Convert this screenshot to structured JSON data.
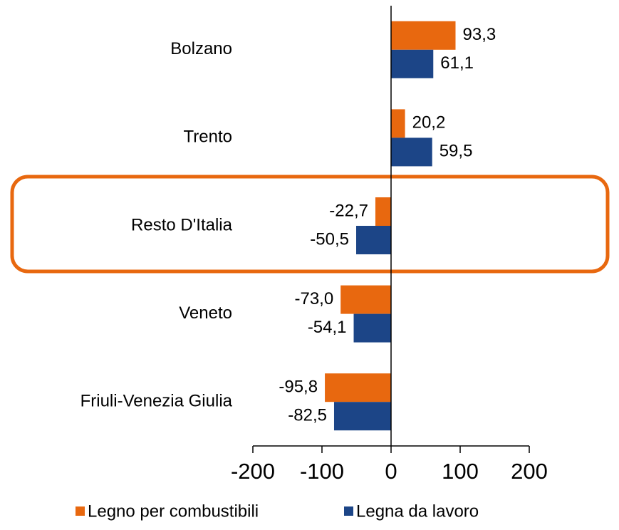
{
  "chart_data": {
    "type": "hbar",
    "categories": [
      "Bolzano",
      "Trento",
      "Resto D'Italia",
      "Veneto",
      "Friuli-Venezia Giulia"
    ],
    "series": [
      {
        "name": "Legno per combustibili",
        "color": "#e8680f",
        "values": [
          93.3,
          20.2,
          -22.7,
          -73.0,
          -95.8
        ],
        "value_labels": [
          "93,3",
          "20,2",
          "-22,7",
          "-73,0",
          "-95,8"
        ]
      },
      {
        "name": "Legna da lavoro",
        "color": "#1c4587",
        "values": [
          61.1,
          59.5,
          -50.5,
          -54.1,
          -82.5
        ],
        "value_labels": [
          "61,1",
          "59,5",
          "-50,5",
          "-54,1",
          "-82,5"
        ]
      }
    ],
    "xlim": [
      -200,
      200
    ],
    "xticks": [
      -200,
      -100,
      0,
      100,
      200
    ]
  }
}
